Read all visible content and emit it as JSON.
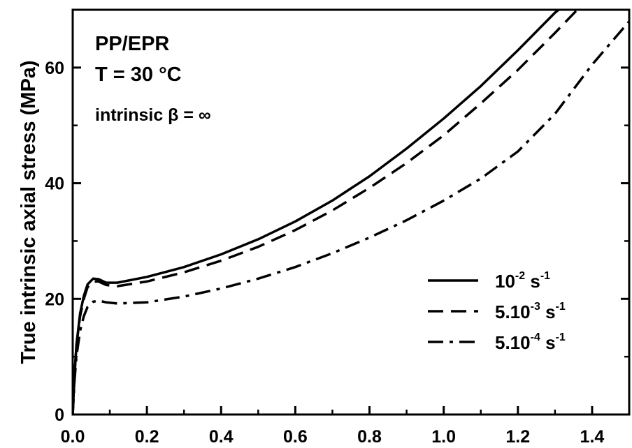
{
  "chart_data": {
    "type": "line",
    "title": "",
    "xlabel": "",
    "ylabel": "True intrinsic axial stress (MPa)",
    "xlim": [
      0,
      1.5
    ],
    "ylim": [
      0,
      70
    ],
    "x_ticks": [
      "0.0",
      "0.2",
      "0.4",
      "0.6",
      "0.8",
      "1.0",
      "1.2",
      "1.4"
    ],
    "y_ticks": [
      "0",
      "20",
      "40",
      "60"
    ],
    "grid": false,
    "legend_position": "bottom-right",
    "annotations": [
      "PP/EPR",
      "T = 30 °C",
      "intrinsic β = ∞"
    ],
    "series": [
      {
        "name": "10-2 s-1",
        "legend_base": "10",
        "legend_exp": "-2",
        "legend_unit": " s",
        "legend_unit_exp": "-1",
        "dash": "solid",
        "points": [
          [
            0,
            0
          ],
          [
            0.005,
            7
          ],
          [
            0.01,
            12
          ],
          [
            0.02,
            17.5
          ],
          [
            0.03,
            20.5
          ],
          [
            0.04,
            22.5
          ],
          [
            0.055,
            23.5
          ],
          [
            0.07,
            23.4
          ],
          [
            0.09,
            22.8
          ],
          [
            0.12,
            22.8
          ],
          [
            0.2,
            23.8
          ],
          [
            0.3,
            25.5
          ],
          [
            0.4,
            27.7
          ],
          [
            0.5,
            30.3
          ],
          [
            0.6,
            33.4
          ],
          [
            0.7,
            37
          ],
          [
            0.8,
            41.2
          ],
          [
            0.9,
            46
          ],
          [
            1.0,
            51.2
          ],
          [
            1.1,
            56.8
          ],
          [
            1.2,
            63
          ],
          [
            1.3,
            69.5
          ],
          [
            1.33,
            71
          ]
        ]
      },
      {
        "name": "5.10-3 s-1",
        "legend_base": "5.10",
        "legend_exp": "-3",
        "legend_unit": " s",
        "legend_unit_exp": "-1",
        "dash": "dashed",
        "points": [
          [
            0,
            0
          ],
          [
            0.005,
            7
          ],
          [
            0.01,
            12
          ],
          [
            0.02,
            17
          ],
          [
            0.03,
            20
          ],
          [
            0.04,
            22
          ],
          [
            0.055,
            23
          ],
          [
            0.07,
            23
          ],
          [
            0.09,
            22.4
          ],
          [
            0.12,
            22.2
          ],
          [
            0.2,
            23
          ],
          [
            0.3,
            24.6
          ],
          [
            0.4,
            26.6
          ],
          [
            0.5,
            29
          ],
          [
            0.6,
            31.9
          ],
          [
            0.7,
            35.3
          ],
          [
            0.8,
            39.2
          ],
          [
            0.9,
            43.5
          ],
          [
            1.0,
            48.3
          ],
          [
            1.1,
            53.8
          ],
          [
            1.2,
            59.6
          ],
          [
            1.3,
            66
          ],
          [
            1.36,
            70
          ]
        ]
      },
      {
        "name": "5.10-4 s-1",
        "legend_base": "5.10",
        "legend_exp": "-4",
        "legend_unit": " s",
        "legend_unit_exp": "-1",
        "dash": "dashdot",
        "points": [
          [
            0,
            0
          ],
          [
            0.005,
            6
          ],
          [
            0.01,
            10
          ],
          [
            0.02,
            14.5
          ],
          [
            0.03,
            17
          ],
          [
            0.04,
            18.6
          ],
          [
            0.055,
            19.5
          ],
          [
            0.07,
            19.7
          ],
          [
            0.09,
            19.4
          ],
          [
            0.12,
            19.2
          ],
          [
            0.2,
            19.4
          ],
          [
            0.3,
            20.4
          ],
          [
            0.4,
            21.8
          ],
          [
            0.5,
            23.5
          ],
          [
            0.6,
            25.5
          ],
          [
            0.7,
            27.9
          ],
          [
            0.8,
            30.6
          ],
          [
            0.9,
            33.6
          ],
          [
            1.0,
            37
          ],
          [
            1.1,
            40.8
          ],
          [
            1.2,
            45.5
          ],
          [
            1.3,
            52
          ],
          [
            1.4,
            60.5
          ],
          [
            1.5,
            68
          ]
        ]
      }
    ]
  }
}
